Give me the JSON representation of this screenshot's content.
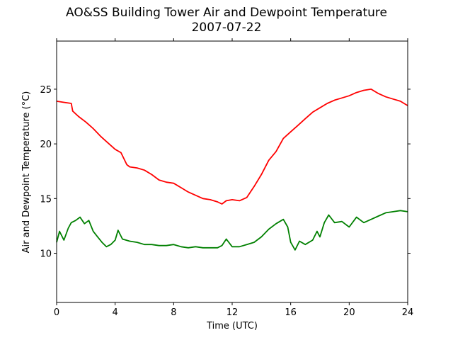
{
  "chart_data": {
    "type": "line",
    "title": "AO&SS Building Tower Air and Dewpoint Temperature",
    "subtitle": "2007-07-22",
    "xlabel": "Time (UTC)",
    "ylabel": "Air and Dewpoint Temperature (°C)",
    "xlim": [
      0,
      24
    ],
    "ylim": [
      5.5,
      29.4
    ],
    "xticks": [
      0,
      4,
      8,
      12,
      16,
      20,
      24
    ],
    "yticks": [
      10,
      15,
      20,
      25
    ],
    "grid": false,
    "series": [
      {
        "color": "#ff0000",
        "x": [
          0,
          0.5,
          1.0,
          1.1,
          1.5,
          2.0,
          2.5,
          3.0,
          3.5,
          4.0,
          4.4,
          4.8,
          5.0,
          5.5,
          6.0,
          6.5,
          7.0,
          7.5,
          8.0,
          8.5,
          9.0,
          9.5,
          10.0,
          10.5,
          11.0,
          11.3,
          11.6,
          12.0,
          12.5,
          13.0,
          13.5,
          14.0,
          14.5,
          15.0,
          15.5,
          16.0,
          16.5,
          17.0,
          17.5,
          18.0,
          18.5,
          19.0,
          19.5,
          20.0,
          20.5,
          21.0,
          21.5,
          22.0,
          22.5,
          23.0,
          23.5,
          24.0
        ],
        "values": [
          23.9,
          23.8,
          23.7,
          23.0,
          22.5,
          22.0,
          21.4,
          20.7,
          20.1,
          19.5,
          19.2,
          18.1,
          17.9,
          17.8,
          17.6,
          17.2,
          16.7,
          16.5,
          16.4,
          16.0,
          15.6,
          15.3,
          15.0,
          14.9,
          14.7,
          14.5,
          14.8,
          14.9,
          14.8,
          15.1,
          16.1,
          17.2,
          18.5,
          19.3,
          20.5,
          21.1,
          21.7,
          22.3,
          22.9,
          23.3,
          23.7,
          24.0,
          24.2,
          24.4,
          24.7,
          24.9,
          25.0,
          24.6,
          24.3,
          24.1,
          23.9,
          23.5
        ]
      },
      {
        "color": "#008000",
        "x": [
          0,
          0.2,
          0.5,
          0.8,
          1.0,
          1.3,
          1.6,
          1.9,
          2.2,
          2.5,
          2.8,
          3.1,
          3.4,
          3.7,
          4.0,
          4.2,
          4.5,
          5.0,
          5.5,
          6.0,
          6.5,
          7.0,
          7.5,
          8.0,
          8.5,
          9.0,
          9.5,
          10.0,
          10.5,
          11.0,
          11.3,
          11.6,
          12.0,
          12.5,
          13.0,
          13.5,
          14.0,
          14.5,
          15.0,
          15.5,
          15.8,
          16.0,
          16.3,
          16.6,
          17.0,
          17.5,
          17.8,
          18.0,
          18.3,
          18.6,
          19.0,
          19.5,
          20.0,
          20.5,
          21.0,
          21.5,
          22.0,
          22.5,
          23.0,
          23.5,
          24.0
        ],
        "values": [
          11.0,
          12.0,
          11.2,
          12.3,
          12.8,
          13.0,
          13.3,
          12.7,
          13.0,
          12.0,
          11.5,
          11.0,
          10.6,
          10.8,
          11.2,
          12.1,
          11.3,
          11.1,
          11.0,
          10.8,
          10.8,
          10.7,
          10.7,
          10.8,
          10.6,
          10.5,
          10.6,
          10.5,
          10.5,
          10.5,
          10.7,
          11.3,
          10.6,
          10.6,
          10.8,
          11.0,
          11.5,
          12.2,
          12.7,
          13.1,
          12.4,
          11.0,
          10.3,
          11.1,
          10.8,
          11.2,
          12.0,
          11.5,
          12.8,
          13.5,
          12.8,
          12.9,
          12.4,
          13.3,
          12.8,
          13.1,
          13.4,
          13.7,
          13.8,
          13.9,
          13.8
        ]
      }
    ]
  }
}
